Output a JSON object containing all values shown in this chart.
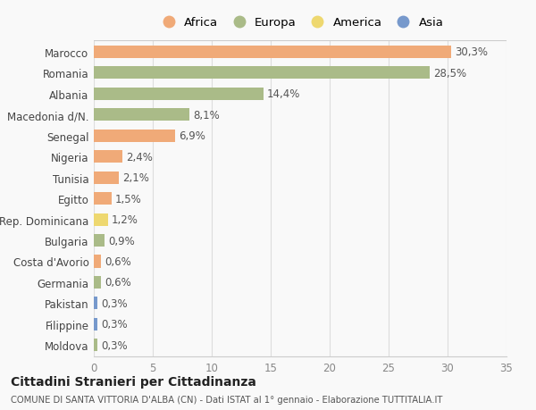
{
  "countries": [
    "Marocco",
    "Romania",
    "Albania",
    "Macedonia d/N.",
    "Senegal",
    "Nigeria",
    "Tunisia",
    "Egitto",
    "Rep. Dominicana",
    "Bulgaria",
    "Costa d'Avorio",
    "Germania",
    "Pakistan",
    "Filippine",
    "Moldova"
  ],
  "values": [
    30.3,
    28.5,
    14.4,
    8.1,
    6.9,
    2.4,
    2.1,
    1.5,
    1.2,
    0.9,
    0.6,
    0.6,
    0.3,
    0.3,
    0.3
  ],
  "labels": [
    "30,3%",
    "28,5%",
    "14,4%",
    "8,1%",
    "6,9%",
    "2,4%",
    "2,1%",
    "1,5%",
    "1,2%",
    "0,9%",
    "0,6%",
    "0,6%",
    "0,3%",
    "0,3%",
    "0,3%"
  ],
  "continents": [
    "Africa",
    "Europa",
    "Europa",
    "Europa",
    "Africa",
    "Africa",
    "Africa",
    "Africa",
    "America",
    "Europa",
    "Africa",
    "Europa",
    "Asia",
    "Asia",
    "Europa"
  ],
  "continent_colors": {
    "Africa": "#F0AA78",
    "Europa": "#AABB88",
    "America": "#EED870",
    "Asia": "#7799CC"
  },
  "legend_order": [
    "Africa",
    "Europa",
    "America",
    "Asia"
  ],
  "title": "Cittadini Stranieri per Cittadinanza",
  "subtitle": "COMUNE DI SANTA VITTORIA D'ALBA (CN) - Dati ISTAT al 1° gennaio - Elaborazione TUTTITALIA.IT",
  "xlim": [
    0,
    35
  ],
  "xticks": [
    0,
    5,
    10,
    15,
    20,
    25,
    30,
    35
  ],
  "background_color": "#f9f9f9",
  "grid_color": "#dddddd",
  "bar_height": 0.6,
  "label_fontsize": 8.5,
  "tick_fontsize": 8.5
}
